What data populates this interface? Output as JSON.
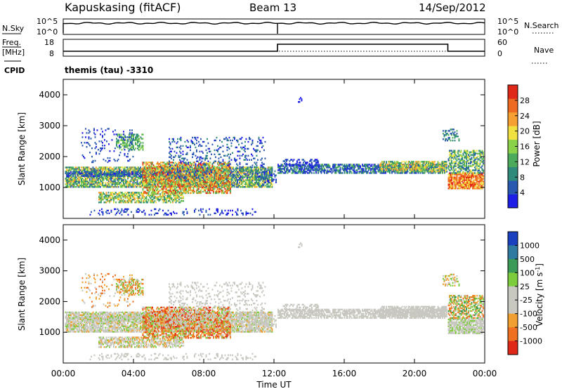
{
  "header": {
    "station": "Kapuskasing (fitACF)",
    "beam": "Beam 13",
    "date": "14/Sep/2012"
  },
  "noise_panel": {
    "left_label": "N.Sky",
    "left_ticks": [
      "10^5",
      "10^0"
    ],
    "right_ticks": [
      "10^5",
      "10^0"
    ],
    "right_label": "N.Search"
  },
  "freq_panel": {
    "left_label_1": "Freq.",
    "left_label_2": "[MHz]",
    "left_ticks": [
      "18",
      "8"
    ],
    "right_ticks": [
      "60",
      "0"
    ],
    "right_label": "Nave"
  },
  "cpid": {
    "label": "CPID",
    "value": "themis (tau) -3310"
  },
  "colors": {
    "power_scale": [
      "#1e1ee6",
      "#2858b0",
      "#2e8a7a",
      "#4cab5a",
      "#8ad24a",
      "#f0e040",
      "#f5a030",
      "#ee6a20",
      "#e02818"
    ],
    "velocity_scale": [
      "#1a40c0",
      "#2f7aa0",
      "#3c9a58",
      "#7ccc3c",
      "#c8c8c0",
      "#c8c8c0",
      "#f0a030",
      "#ee7020",
      "#e02818"
    ]
  },
  "chart_data": [
    {
      "type": "heatmap",
      "name": "power",
      "ylabel": "Slant Range [km]",
      "yticks": [
        "1000",
        "2000",
        "3000",
        "4000"
      ],
      "ylim": [
        0,
        4500
      ],
      "colorbar_label": "Power [dB]",
      "colorbar_ticks": [
        "4",
        "8",
        "12",
        "16",
        "20",
        "24",
        "28"
      ],
      "colorbar_range": [
        0,
        32
      ]
    },
    {
      "type": "heatmap",
      "name": "velocity",
      "ylabel": "Slant Range [km]",
      "yticks": [
        "1000",
        "2000",
        "3000",
        "4000"
      ],
      "ylim": [
        0,
        4500
      ],
      "xlabel": "Time UT",
      "xticks": [
        "00:00",
        "04:00",
        "08:00",
        "12:00",
        "16:00",
        "20:00",
        "00:00"
      ],
      "xlim_hours": [
        0,
        24
      ],
      "colorbar_label": "Velocity [m s",
      "colorbar_label_sup": "-1",
      "colorbar_label_end": "]",
      "colorbar_ticks": [
        "1000",
        "500",
        "100",
        "25",
        "-25",
        "-100",
        "-500",
        "-1000"
      ]
    }
  ]
}
